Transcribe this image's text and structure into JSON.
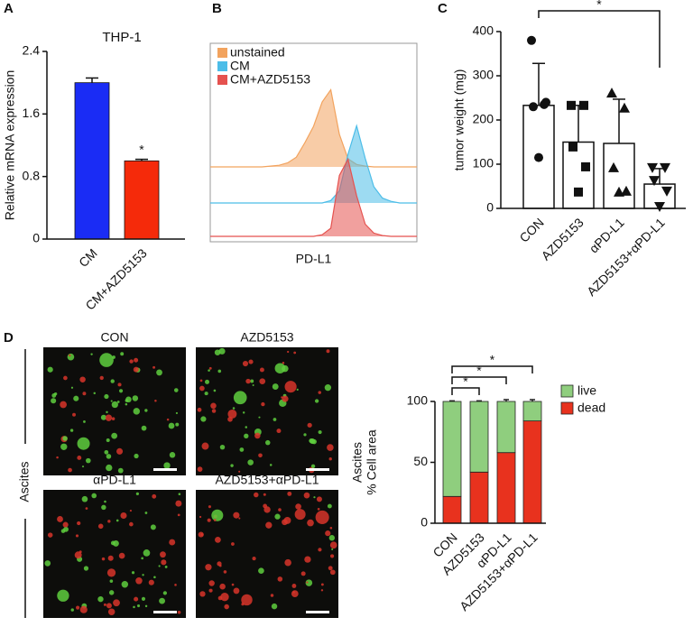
{
  "chart_data": [
    {
      "panel": "A",
      "type": "bar",
      "title": "THP-1",
      "ylabel": "Relative mRNA expression",
      "categories": [
        "CM",
        "CM+AZD5153"
      ],
      "values": [
        2.0,
        1.0
      ],
      "errors": [
        0.06,
        0.02
      ],
      "colors": [
        "#1a2cf5",
        "#f52a0a"
      ],
      "error_direction": "up",
      "ylim": [
        0,
        2.4
      ],
      "yticks": [
        0,
        0.8,
        1.6,
        2.4
      ],
      "annotations": [
        {
          "text": "*",
          "from": 1,
          "to": 1
        }
      ]
    },
    {
      "panel": "B",
      "type": "density",
      "xlabel": "PD-L1",
      "x": [
        0,
        1,
        2,
        3,
        4,
        5,
        6,
        7,
        8,
        9,
        10,
        11,
        12,
        13,
        14,
        15,
        16,
        17,
        18,
        19,
        20,
        21,
        22,
        23,
        24
      ],
      "series": [
        {
          "name": "unstained",
          "color": "#f2a35e",
          "values": [
            0,
            0,
            0,
            0,
            0,
            0,
            0,
            0.01,
            0.02,
            0.05,
            0.12,
            0.3,
            0.5,
            0.8,
            0.95,
            0.4,
            0.1,
            0.03,
            0.01,
            0,
            0,
            0,
            0,
            0,
            0
          ]
        },
        {
          "name": "CM",
          "color": "#4cbde8",
          "values": [
            0,
            0,
            0,
            0,
            0,
            0,
            0,
            0,
            0,
            0,
            0,
            0,
            0,
            0,
            0.03,
            0.15,
            0.6,
            0.95,
            0.55,
            0.2,
            0.06,
            0.02,
            0,
            0,
            0
          ]
        },
        {
          "name": "CM+AZD5153",
          "color": "#e5524f",
          "values": [
            0,
            0,
            0,
            0,
            0,
            0,
            0,
            0,
            0,
            0,
            0,
            0,
            0,
            0.02,
            0.1,
            0.75,
            0.95,
            0.5,
            0.15,
            0.04,
            0.01,
            0,
            0,
            0,
            0
          ]
        }
      ]
    },
    {
      "panel": "C",
      "type": "bar",
      "ylabel": "tumor weight (mg)",
      "categories": [
        "CON",
        "AZD5153",
        "αPD-L1",
        "AZD5153+αPD-L1"
      ],
      "values": [
        233,
        150,
        147,
        55
      ],
      "errors": [
        95,
        83,
        100,
        35
      ],
      "color": "#ffffff",
      "error_direction": "both",
      "points": [
        [
          380,
          235,
          230,
          240,
          115
        ],
        [
          233,
          233,
          139,
          94,
          37
        ],
        [
          261,
          227,
          92,
          39,
          37
        ],
        [
          92,
          92,
          63,
          39,
          4
        ]
      ],
      "ylim": [
        0,
        400
      ],
      "yticks": [
        0,
        100,
        200,
        300,
        400
      ],
      "annotations": [
        {
          "text": "*",
          "from": 0,
          "to": 3
        }
      ]
    },
    {
      "panel": "D",
      "type": "stacked_bar",
      "ylabel": [
        "Ascites",
        "% Cell area"
      ],
      "image_titles": [
        "CON",
        "AZD5153",
        "αPD-L1",
        "AZD5153+αPD-L1"
      ],
      "image_group_label": "Ascites",
      "categories": [
        "CON",
        "AZD5153",
        "αPD-L1",
        "AZD5153+αPD-L1"
      ],
      "series": [
        {
          "name": "live",
          "color": "#8fce7e",
          "values": [
            78,
            58,
            42,
            16
          ],
          "errors": [
            0.5,
            0.5,
            1.5,
            1.5
          ]
        },
        {
          "name": "dead",
          "color": "#e8321e",
          "values": [
            22,
            42,
            58,
            84
          ],
          "errors": [
            0.5,
            0.5,
            1.5,
            1.5
          ]
        }
      ],
      "ylim": [
        0,
        100
      ],
      "yticks": [
        0,
        50,
        100
      ],
      "annotations": [
        {
          "text": "*",
          "from": 0,
          "to": 3
        },
        {
          "text": "*",
          "from": 0,
          "to": 2
        },
        {
          "text": "*",
          "from": 0,
          "to": 1
        }
      ]
    }
  ]
}
